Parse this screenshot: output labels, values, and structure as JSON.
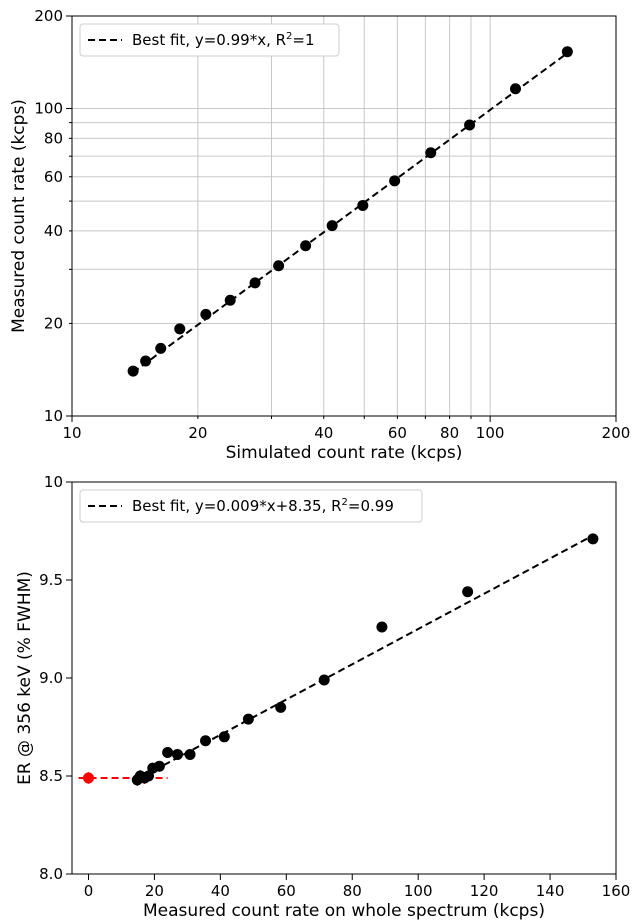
{
  "chart_data": [
    {
      "type": "scatter",
      "xscale": "log",
      "yscale": "log",
      "xlim": [
        10,
        200
      ],
      "ylim": [
        10,
        200
      ],
      "grid": true,
      "xlabel": "Simulated count rate (kcps)",
      "ylabel": "Measured count rate (kcps)",
      "xticks": [
        {
          "v": 10,
          "label": "10"
        },
        {
          "v": 20,
          "label": "20"
        },
        {
          "v": 40,
          "label": "40"
        },
        {
          "v": 60,
          "label": "60"
        },
        {
          "v": 80,
          "label": "80"
        },
        {
          "v": 100,
          "label": "100"
        },
        {
          "v": 200,
          "label": "200"
        }
      ],
      "yticks": [
        {
          "v": 10,
          "label": "10"
        },
        {
          "v": 20,
          "label": "20"
        },
        {
          "v": 40,
          "label": "40"
        },
        {
          "v": 60,
          "label": "60"
        },
        {
          "v": 80,
          "label": "80"
        },
        {
          "v": 100,
          "label": "100"
        },
        {
          "v": 200,
          "label": "200"
        }
      ],
      "legend": {
        "position": "top-left",
        "label": "Best fit, y=0.99*x, R²=1"
      },
      "series": [
        {
          "x": [
            14,
            15,
            16.3,
            18.1,
            20.9,
            23.9,
            27.4,
            31.2,
            36.2,
            41.9,
            49.6,
            59.1,
            72.1,
            89.3,
            115,
            153
          ],
          "y": [
            14,
            15.1,
            16.6,
            19.2,
            21.4,
            23.8,
            27.1,
            30.8,
            35.8,
            41.6,
            48.4,
            58.2,
            71.8,
            88.4,
            116,
            153
          ],
          "color": "#000000"
        }
      ],
      "fit": {
        "slope": 0.99,
        "x": [
          14,
          153
        ],
        "style": "dashed",
        "color": "#000000"
      }
    },
    {
      "type": "scatter",
      "xlim": [
        -5,
        160
      ],
      "ylim": [
        8.0,
        10.0
      ],
      "grid": false,
      "xlabel": "Measured count rate on whole spectrum (kcps)",
      "ylabel": "ER @ 356 keV (% FWHM)",
      "xticks": [
        {
          "v": 0,
          "label": "0"
        },
        {
          "v": 20,
          "label": "20"
        },
        {
          "v": 40,
          "label": "40"
        },
        {
          "v": 60,
          "label": "60"
        },
        {
          "v": 80,
          "label": "80"
        },
        {
          "v": 100,
          "label": "100"
        },
        {
          "v": 120,
          "label": "120"
        },
        {
          "v": 140,
          "label": "140"
        },
        {
          "v": 160,
          "label": "160"
        }
      ],
      "yticks": [
        {
          "v": 8.0,
          "label": "8.0"
        },
        {
          "v": 8.5,
          "label": "8.5"
        },
        {
          "v": 9.0,
          "label": "9.0"
        },
        {
          "v": 9.5,
          "label": "9.5"
        },
        {
          "v": 10.0,
          "label": "10"
        }
      ],
      "legend": {
        "position": "top-left",
        "label": "Best fit, y=0.009*x+8.35, R²=0.99"
      },
      "series": [
        {
          "x": [
            14.8,
            15.7,
            17,
            18.2,
            19.5,
            21.5,
            24,
            27,
            30.8,
            35.5,
            41.2,
            48.5,
            58.3,
            71.5,
            89,
            115,
            153
          ],
          "y": [
            8.48,
            8.5,
            8.49,
            8.5,
            8.54,
            8.55,
            8.62,
            8.61,
            8.61,
            8.68,
            8.7,
            8.79,
            8.85,
            8.99,
            9.26,
            9.44,
            9.71
          ],
          "err": [
            0.03,
            0.03,
            0.03,
            0.02,
            0.02,
            0.02,
            0.0,
            0.0,
            0.0,
            0.0,
            0.0,
            0.0,
            0.0,
            0.0,
            0.0,
            0.0,
            0.0
          ],
          "color": "#000000"
        },
        {
          "x": [
            0
          ],
          "y": [
            8.49
          ],
          "err": [
            0.03
          ],
          "xerr": [
            0.6
          ],
          "color": "#ff0000"
        }
      ],
      "fit": {
        "slope": 0.009,
        "intercept": 8.35,
        "x": [
          14,
          153
        ],
        "style": "dashed",
        "color": "#000000"
      },
      "reference_line": {
        "y": 8.49,
        "x": [
          -3,
          24
        ],
        "style": "dashed",
        "color": "#ff0000"
      }
    }
  ]
}
